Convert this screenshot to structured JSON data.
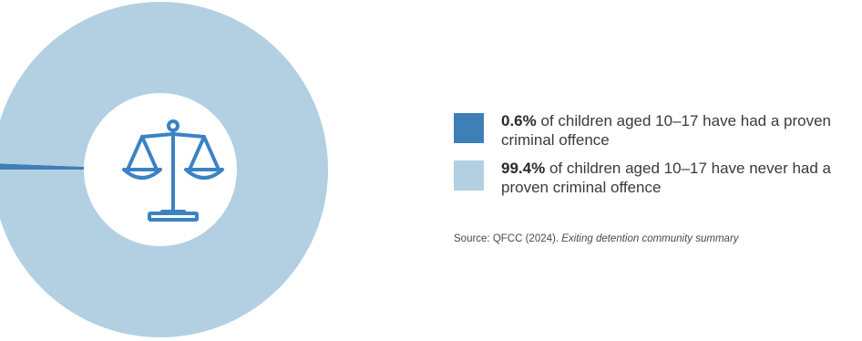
{
  "chart_data": {
    "type": "pie",
    "variant": "donut",
    "slices": [
      {
        "value": 0.6,
        "value_label": "0.6%",
        "label": "of children aged 10–17 have had a proven criminal offence",
        "color": "#3f7fb8"
      },
      {
        "value": 99.4,
        "value_label": "99.4%",
        "label": "of children aged 10–17 have never had a proven criminal offence",
        "color": "#b3d0e2"
      }
    ],
    "legend_position": "right",
    "center_icon": "scales-of-justice-icon"
  },
  "source": {
    "prefix": "Source: QFCC (2024). ",
    "title": "Exiting detention community summary"
  },
  "colors": {
    "icon": "#3b82c4",
    "background": "#ffffff"
  }
}
